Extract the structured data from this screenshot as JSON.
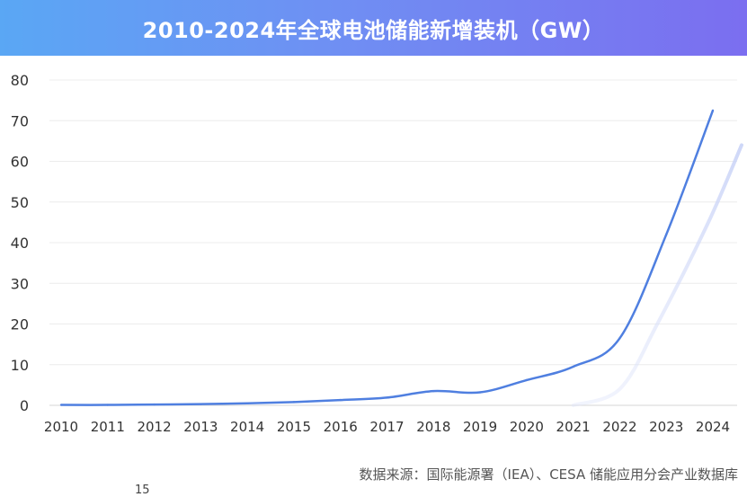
{
  "chart_data": {
    "type": "line",
    "title": "2010-2024年全球电池储能新增装机（GW）",
    "xlabel": "",
    "ylabel": "",
    "x": [
      "2010",
      "2011",
      "2012",
      "2013",
      "2014",
      "2015",
      "2016",
      "2017",
      "2018",
      "2019",
      "2020",
      "2021",
      "2022",
      "2023",
      "2024"
    ],
    "series": [
      {
        "values": [
          0.1,
          0.1,
          0.2,
          0.3,
          0.5,
          0.8,
          1.3,
          1.9,
          3.5,
          3.2,
          6.2,
          9.5,
          16.5,
          42,
          72.5
        ],
        "color": "#4f7fe0"
      }
    ],
    "yticks": [
      0,
      10,
      20,
      30,
      40,
      50,
      60,
      70,
      80
    ],
    "ylim": [
      0,
      80
    ],
    "grid": true,
    "legend": "none"
  },
  "footer": {
    "source": "数据来源：国际能源署（IEA）、CESA 储能应用分会产业数据库",
    "cropped_text": "15"
  },
  "colors": {
    "title_gradient_start": "#5aa7f4",
    "title_gradient_end": "#7b6ef0",
    "line": "#4f7fe0",
    "grid": "#ececec"
  }
}
